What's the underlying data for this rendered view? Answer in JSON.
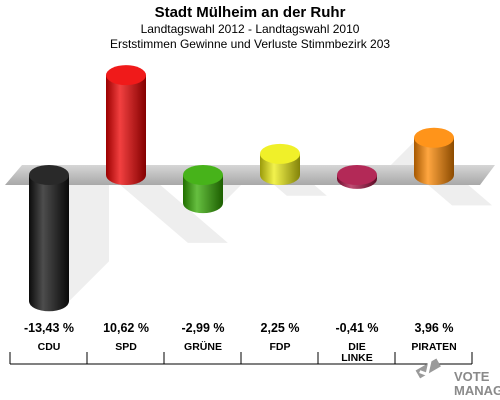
{
  "chart_data": {
    "type": "bar",
    "title": "Stadt Mülheim an der Ruhr",
    "subtitle1": "Landtagswahl 2012 - Landtagswahl 2010",
    "subtitle2": "Erststimmen Gewinne und Verluste Stimmbezirk 203",
    "categories": [
      [
        "CDU"
      ],
      [
        "SPD"
      ],
      [
        "GRÜNE"
      ],
      [
        "FDP"
      ],
      [
        "DIE",
        "LINKE"
      ],
      [
        "PIRATEN"
      ]
    ],
    "values": [
      -13.43,
      10.62,
      -2.99,
      2.25,
      -0.41,
      3.96
    ],
    "value_labels": [
      "-13,43 %",
      "10,62 %",
      "-2,99 %",
      "2,25 %",
      "-0,41 %",
      "3,96 %"
    ],
    "colors": [
      "#111111",
      "#ee0000",
      "#33aa00",
      "#eeee11",
      "#aa1144",
      "#ff8800"
    ],
    "legend": "none",
    "grid": false
  },
  "logo": {
    "line1": "VOTE",
    "line2": "MANAGER"
  }
}
